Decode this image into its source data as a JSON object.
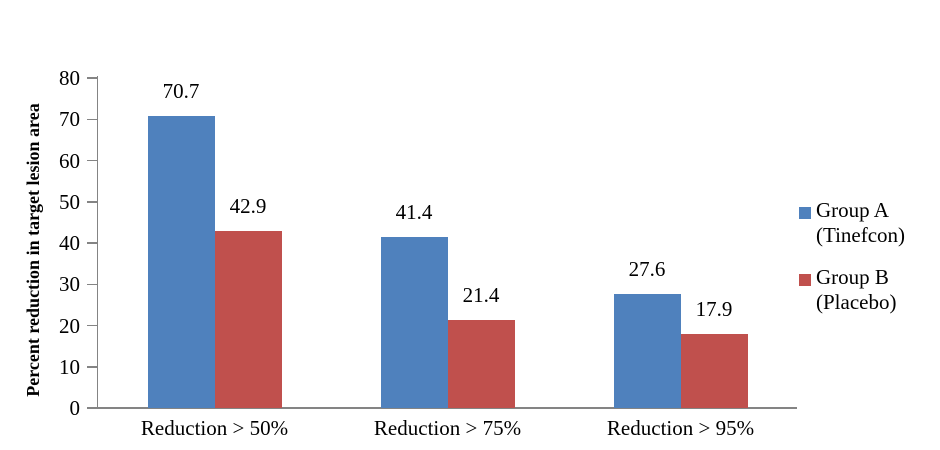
{
  "chart_data": {
    "type": "bar",
    "title": "",
    "xlabel": "",
    "ylabel": "Percent reduction in target lesion area",
    "ylim": [
      0,
      80
    ],
    "yticks": [
      0,
      10,
      20,
      30,
      40,
      50,
      60,
      70,
      80
    ],
    "categories": [
      "Reduction > 50%",
      "Reduction > 75%",
      "Reduction > 95%"
    ],
    "series": [
      {
        "name": "Group A (Tinefcon)",
        "legend_lines": [
          "Group A",
          "(Tinefcon)"
        ],
        "color": "#4F81BD",
        "values": [
          70.7,
          41.4,
          27.6
        ]
      },
      {
        "name": "Group B (Placebo)",
        "legend_lines": [
          "Group B",
          "(Placebo)"
        ],
        "color": "#C0504D",
        "values": [
          42.9,
          21.4,
          17.9
        ]
      }
    ],
    "data_labels": [
      [
        "70.7",
        "41.4",
        "27.6"
      ],
      [
        "42.9",
        "21.4",
        "17.9"
      ]
    ],
    "legend_position": "right",
    "grid": false,
    "axis_color": "#848484",
    "text_color": "#000000",
    "background_color": "#FFFFFF"
  }
}
